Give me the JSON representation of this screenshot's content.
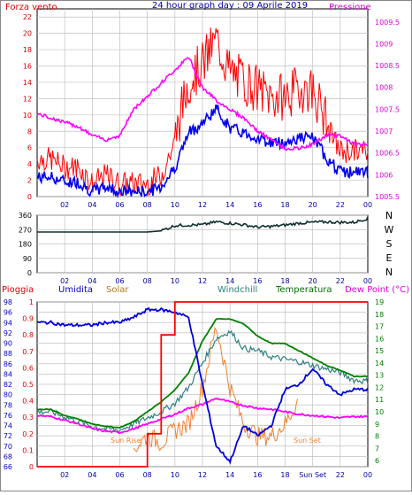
{
  "panel1": {
    "title": "24 hour graph day : 09 Aprile 2019",
    "left_label": "Forza vento",
    "right_label": "Pressione",
    "left_ticks": [
      "0",
      "2",
      "4",
      "6",
      "8",
      "10",
      "12",
      "14",
      "16",
      "18",
      "20",
      "22"
    ],
    "right_ticks": [
      "1005.5",
      "1006",
      "1006.5",
      "1007",
      "1007.5",
      "1008",
      "1008.5",
      "1009",
      "1009.5"
    ],
    "x_ticks": [
      "02",
      "04",
      "06",
      "08",
      "10",
      "12",
      "14",
      "16",
      "18",
      "20",
      "22",
      "00"
    ]
  },
  "panel2": {
    "left_ticks": [
      "0",
      "90",
      "180",
      "270",
      "360"
    ],
    "x_ticks": [
      "02",
      "04",
      "06",
      "08",
      "10",
      "12",
      "14",
      "16",
      "18",
      "20",
      "22",
      "00"
    ],
    "compass": [
      "N",
      "W",
      "S",
      "E",
      "N"
    ]
  },
  "panel3": {
    "legend": {
      "rain": "Pioggia",
      "humidity": "Umidita",
      "solar": "Solar",
      "windchill": "Windchill",
      "temperature": "Temperatura",
      "dewpoint": "Dew Point (°C)"
    },
    "left_ticks_humidity": [
      "66",
      "68",
      "70",
      "72",
      "74",
      "76",
      "78",
      "80",
      "82",
      "84",
      "86",
      "88",
      "90",
      "92",
      "94",
      "96",
      "98"
    ],
    "left_ticks_rain": [
      "0",
      "0.1",
      "0.2",
      "0.3",
      "0.4",
      "0.5",
      "0.6",
      "0.7",
      "0.8",
      "0.9",
      "1"
    ],
    "right_ticks": [
      "6",
      "7",
      "8",
      "9",
      "10",
      "11",
      "12",
      "13",
      "14",
      "15",
      "16",
      "17",
      "18",
      "19"
    ],
    "x_ticks": [
      "02",
      "04",
      "06",
      "08",
      "10",
      "12",
      "14",
      "16",
      "18",
      "Sun Set",
      "22",
      "00"
    ],
    "annotations": {
      "sunrise": "Sun Rise",
      "sunset": "Sun Set"
    }
  },
  "colors": {
    "wind_gust": "#ff0000",
    "wind_avg": "#0000ee",
    "pressure": "#ff00ff",
    "direction": "#103030",
    "rain": "#ff0000",
    "humidity": "#0000dd",
    "solar": "#f08030",
    "windchill": "#308080",
    "temperature": "#008000",
    "dewpoint": "#ff00ff",
    "grid": "#c0c0c0"
  },
  "chart_data": [
    {
      "type": "line",
      "title": "24 hour graph day : 09 Aprile 2019",
      "x_hours": [
        0,
        1,
        2,
        3,
        4,
        5,
        6,
        7,
        8,
        9,
        10,
        11,
        12,
        13,
        14,
        15,
        16,
        17,
        18,
        19,
        20,
        21,
        22,
        23,
        24
      ],
      "series": [
        {
          "name": "Forza vento",
          "axis": "left",
          "values": [
            4,
            4,
            3,
            3,
            1,
            2,
            1,
            1,
            1,
            2,
            6,
            13,
            15,
            18,
            14,
            13,
            12,
            11,
            11,
            12,
            12,
            8,
            5,
            5,
            5
          ]
        },
        {
          "name": "Pressione",
          "axis": "right",
          "values": [
            1007.4,
            1007.3,
            1007.2,
            1007.1,
            1006.9,
            1006.8,
            1006.9,
            1007.5,
            1007.8,
            1008.1,
            1008.4,
            1008.7,
            1008.0,
            1007.7,
            1007.5,
            1007.3,
            1007.0,
            1006.8,
            1006.6,
            1006.6,
            1006.7,
            1006.9,
            1006.9,
            1006.7,
            1006.7
          ]
        }
      ],
      "ylim_left": [
        0,
        23
      ],
      "ylim_right": [
        1005.5,
        1009.8
      ],
      "grid": true
    },
    {
      "type": "line",
      "series": [
        {
          "name": "direction",
          "values": [
            255,
            255,
            255,
            255,
            255,
            255,
            255,
            255,
            255,
            262,
            295,
            298,
            300,
            318,
            310,
            300,
            285,
            290,
            298,
            310,
            315,
            318,
            315,
            315,
            340
          ]
        }
      ],
      "ylim": [
        0,
        360
      ],
      "grid": true
    },
    {
      "type": "line",
      "x_hours": [
        0,
        1,
        2,
        3,
        4,
        5,
        6,
        7,
        8,
        9,
        10,
        11,
        12,
        13,
        14,
        15,
        16,
        17,
        18,
        19,
        20,
        21,
        22,
        23,
        24
      ],
      "series": [
        {
          "name": "Pioggia",
          "axis": "rain",
          "values": [
            0,
            0,
            0,
            0,
            0,
            0,
            0,
            0,
            0.2,
            0.8,
            1,
            1,
            1,
            1,
            1,
            1,
            1,
            1,
            1,
            1,
            1,
            1,
            1,
            1,
            1
          ]
        },
        {
          "name": "Umidita",
          "axis": "humidity",
          "values": [
            94,
            94,
            93.5,
            93.5,
            93.5,
            94,
            94,
            95,
            96.5,
            96.5,
            96,
            95,
            82,
            70,
            67,
            74,
            72,
            74,
            81,
            82,
            85,
            82,
            80,
            81,
            81
          ]
        },
        {
          "name": "Solar",
          "axis": "temp",
          "values": [
            null,
            null,
            null,
            null,
            null,
            null,
            null,
            7,
            8,
            7.5,
            8.5,
            9,
            12,
            17,
            12,
            9,
            8,
            8,
            9,
            11,
            null,
            null,
            null,
            null,
            null
          ]
        },
        {
          "name": "Windchill",
          "axis": "temp",
          "values": [
            10,
            10,
            9.6,
            9.2,
            8.8,
            8.6,
            8.5,
            9,
            9.5,
            10,
            10.7,
            12,
            14,
            16,
            16.6,
            15.2,
            15,
            14.5,
            14.3,
            14.1,
            13.8,
            13.5,
            13.2,
            12.6,
            12.5
          ]
        },
        {
          "name": "Temperatura",
          "axis": "temp",
          "values": [
            10.2,
            10.2,
            9.7,
            9.4,
            9.0,
            8.8,
            8.7,
            9.2,
            10.0,
            10.8,
            11.8,
            13.2,
            15.8,
            17.6,
            17.6,
            17.2,
            16.2,
            15.6,
            15.6,
            15.0,
            14.4,
            13.8,
            13.4,
            12.9,
            12.9
          ]
        },
        {
          "name": "Dew Point (°C)",
          "axis": "temp",
          "values": [
            9.7,
            9.6,
            9.3,
            9.0,
            8.6,
            8.4,
            8.3,
            8.6,
            9.0,
            9.4,
            9.8,
            10.3,
            10.6,
            11.1,
            10.8,
            10.5,
            10.3,
            10.2,
            10.0,
            9.8,
            9.7,
            9.6,
            9.5,
            9.6,
            9.6
          ]
        }
      ],
      "ylim_humidity": [
        66,
        98
      ],
      "ylim_rain": [
        0,
        1
      ],
      "ylim_temp": [
        5.5,
        19
      ],
      "grid": true
    }
  ]
}
